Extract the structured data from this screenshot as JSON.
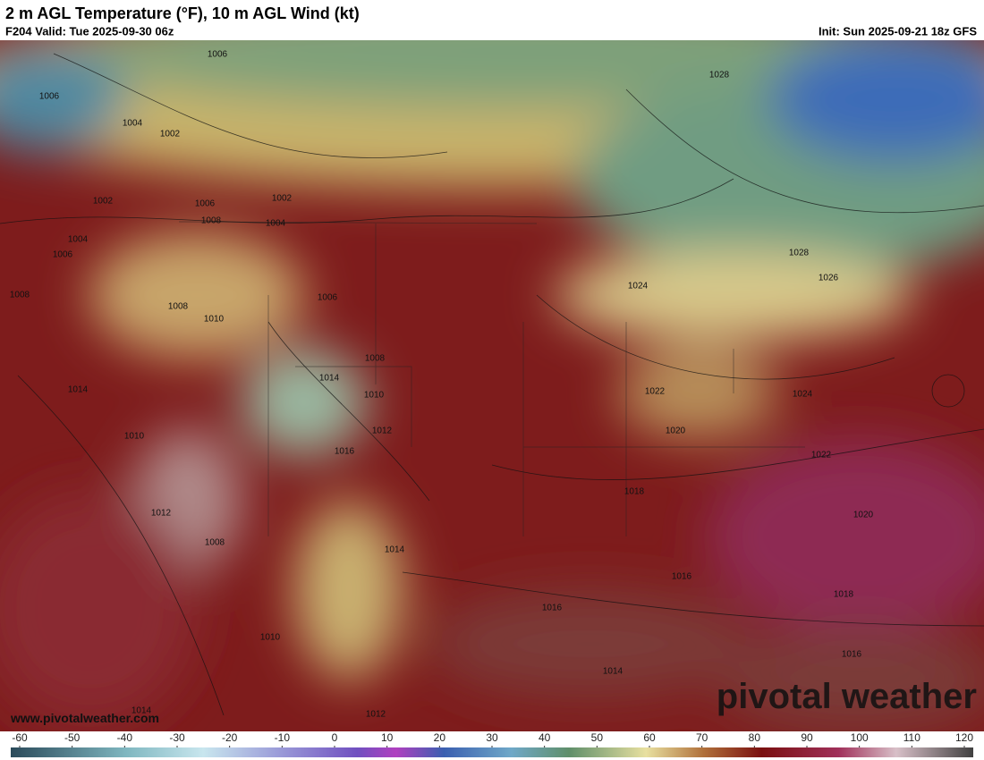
{
  "header": {
    "title": "2 m AGL Temperature (°F), 10 m AGL Wind (kt)",
    "valid": "F204 Valid: Tue 2025-09-30 06z",
    "init": "Init: Sun 2025-09-21 18z GFS"
  },
  "map": {
    "isobar_labels": [
      "1006",
      "1006",
      "1004",
      "1002",
      "1002",
      "1006",
      "1008",
      "1002",
      "1004",
      "1004",
      "1006",
      "1008",
      "1008",
      "1010",
      "1006",
      "1008",
      "1014",
      "1014",
      "1010",
      "1012",
      "1016",
      "1010",
      "1012",
      "1008",
      "1014",
      "1010",
      "1014",
      "1012",
      "1028",
      "1028",
      "1026",
      "1024",
      "1022",
      "1024",
      "1020",
      "1022",
      "1018",
      "1020",
      "1016",
      "1016",
      "1018",
      "1014",
      "1016"
    ]
  },
  "footer": {
    "website": "www.pivotalweather.com",
    "watermark": "pivotal weather"
  },
  "colorbar": {
    "ticks": [
      -60,
      -50,
      -40,
      -30,
      -20,
      -10,
      0,
      10,
      20,
      30,
      40,
      50,
      60,
      70,
      80,
      90,
      100,
      110,
      120
    ]
  }
}
